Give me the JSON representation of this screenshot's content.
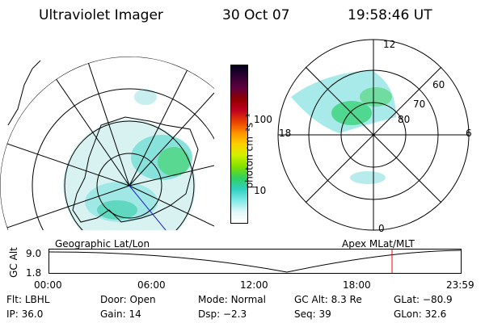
{
  "header": {
    "instrument": "Ultraviolet Imager",
    "date": "30 Oct 07",
    "time": "19:58:46 UT"
  },
  "colorbar": {
    "unit_label": "photon cm⁻²s⁻¹",
    "tick_labels": [
      "100",
      "10"
    ],
    "colors": [
      "#000020",
      "#300030",
      "#600040",
      "#900000",
      "#c00020",
      "#e84000",
      "#ff9000",
      "#ffd000",
      "#d0f000",
      "#80e000",
      "#30d060",
      "#30d0c0",
      "#80e8e8",
      "#e0f8f8",
      "#ffffff"
    ]
  },
  "polar_plot": {
    "mlt_labels": {
      "top": "12",
      "left": "18",
      "right": "6",
      "bottom": "0"
    },
    "lat_labels": [
      "60",
      "70",
      "80"
    ]
  },
  "left_map": {
    "caption": "Geographic Lat/Lon"
  },
  "right_map": {
    "caption": "Apex MLat/MLT"
  },
  "alt_plot": {
    "ylabel": "GC Alt",
    "yticks": [
      "9.0",
      "1.8"
    ],
    "xticks": [
      "00:00",
      "06:00",
      "12:00",
      "18:00",
      "23:59"
    ],
    "marker_color": "#ff0000"
  },
  "footer": {
    "row1": [
      {
        "label": "Flt:",
        "value": "LBHL"
      },
      {
        "label": "Door:",
        "value": "Open"
      },
      {
        "label": "Mode:",
        "value": "Normal"
      },
      {
        "label": "GC Alt:",
        "value": "8.3 Re"
      },
      {
        "label": "GLat:",
        "value": "−80.9"
      }
    ],
    "row2": [
      {
        "label": "IP:",
        "value": "36.0"
      },
      {
        "label": "Gain:",
        "value": "14"
      },
      {
        "label": "Dsp:",
        "value": "−2.3"
      },
      {
        "label": "Seq:",
        "value": "39"
      },
      {
        "label": "GLon:",
        "value": "32.6"
      }
    ]
  }
}
